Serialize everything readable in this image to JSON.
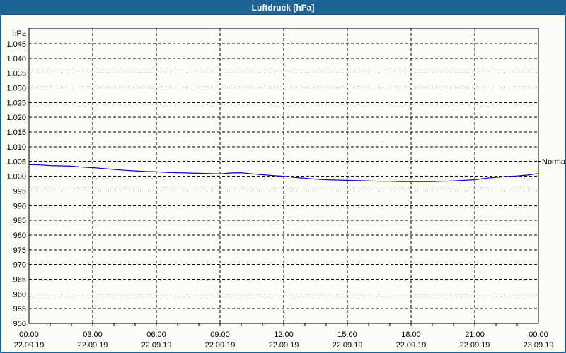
{
  "window": {
    "title": "Luftdruck [hPa]"
  },
  "colors": {
    "titlebar_bg": "#1d6496",
    "title_text": "#ffffff",
    "window_border": "#1d6496",
    "window_bg": "#fdfdf8",
    "grid": "#000000",
    "axis": "#000000",
    "line": "#0000c8"
  },
  "chart_data": {
    "type": "line",
    "title": "Luftdruck [hPa]",
    "ylabel": "hPa",
    "ylim": [
      950,
      1045
    ],
    "ytick_step": 5,
    "ytick_values": [
      1045,
      1040,
      1035,
      1030,
      1025,
      1020,
      1015,
      1010,
      1005,
      1000,
      995,
      990,
      985,
      980,
      975,
      970,
      965,
      960,
      955,
      950
    ],
    "ytick_labels": [
      "1.045",
      "1.040",
      "1.035",
      "1.030",
      "1.025",
      "1.020",
      "1.015",
      "1.010",
      "1.005",
      "1.000",
      "995",
      "990",
      "985",
      "980",
      "975",
      "970",
      "965",
      "960",
      "955",
      "950"
    ],
    "grid": "dashed",
    "x_range_hours": [
      0,
      24
    ],
    "x_major_step_hours": 3,
    "x_minor_tick_hours": 1,
    "x_labels": [
      {
        "time": "00:00",
        "date": "22.09.19"
      },
      {
        "time": "03:00",
        "date": "22.09.19"
      },
      {
        "time": "06:00",
        "date": "22.09.19"
      },
      {
        "time": "09:00",
        "date": "22.09.19"
      },
      {
        "time": "12:00",
        "date": "22.09.19"
      },
      {
        "time": "15:00",
        "date": "22.09.19"
      },
      {
        "time": "18:00",
        "date": "22.09.19"
      },
      {
        "time": "21:00",
        "date": "22.09.19"
      },
      {
        "time": "00:00",
        "date": "23.09.19"
      }
    ],
    "normal_marker": {
      "label": "Normal",
      "level_hpa": 1005
    },
    "series": [
      {
        "name": "Luftdruck",
        "x_step_hours": 0.5,
        "values_hpa": [
          1003.9,
          1003.8,
          1003.6,
          1003.5,
          1003.4,
          1003.1,
          1002.9,
          1002.6,
          1002.3,
          1002.0,
          1001.8,
          1001.6,
          1001.5,
          1001.3,
          1001.2,
          1001.1,
          1001.0,
          1000.9,
          1000.8,
          1001.1,
          1001.2,
          1000.8,
          1000.5,
          1000.2,
          1000.0,
          999.6,
          999.3,
          999.0,
          998.8,
          998.7,
          998.6,
          998.5,
          998.4,
          998.3,
          998.3,
          998.2,
          998.2,
          998.2,
          998.2,
          998.3,
          998.4,
          998.6,
          998.8,
          999.3,
          999.6,
          999.9,
          1000.1,
          1000.4,
          1000.9
        ]
      }
    ]
  }
}
